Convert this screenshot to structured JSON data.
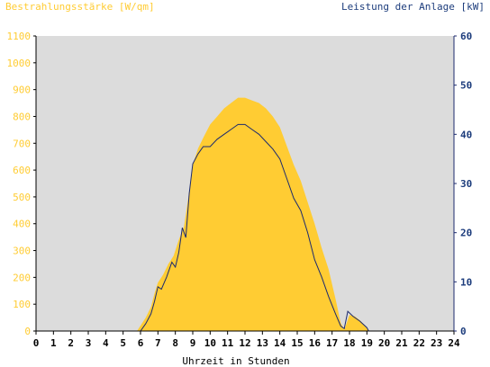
{
  "chart_data": {
    "type": "area",
    "left_axis_label": "Bestrahlungsstärke [W/qm]",
    "right_axis_label": "Leistung der Anlage [kW]",
    "xlabel": "Uhrzeit in Stunden",
    "xlim": [
      0,
      24
    ],
    "ylim_left": [
      0,
      1100
    ],
    "ylim_right": [
      0,
      60
    ],
    "x_ticks": [
      "0",
      "1",
      "2",
      "3",
      "4",
      "5",
      "6",
      "7",
      "8",
      "9",
      "10",
      "11",
      "12",
      "13",
      "14",
      "15",
      "16",
      "17",
      "18",
      "19",
      "20",
      "21",
      "22",
      "23",
      "24"
    ],
    "y_left_ticks": [
      "0",
      "100",
      "200",
      "300",
      "400",
      "500",
      "600",
      "700",
      "800",
      "900",
      "1000",
      "1100"
    ],
    "y_right_ticks": [
      "0",
      "10",
      "20",
      "30",
      "40",
      "50",
      "60"
    ],
    "grid": false,
    "colors": {
      "plot_background": "#dcdcdc",
      "irradiance_fill": "#ffcc33",
      "power_line": "#1c2a6e",
      "left_axis_text": "#ffcc33",
      "right_axis_text": "#1c3c7c",
      "axis": "#000000"
    },
    "series": [
      {
        "name": "Bestrahlungsstärke [W/qm]",
        "axis": "left",
        "style": "area",
        "x": [
          0,
          5.8,
          6.0,
          6.3,
          6.6,
          6.8,
          7.0,
          7.3,
          7.6,
          7.9,
          8.2,
          8.5,
          8.8,
          9.0,
          9.3,
          9.6,
          10.0,
          10.4,
          10.8,
          11.2,
          11.6,
          12.0,
          12.4,
          12.8,
          13.2,
          13.6,
          14.0,
          14.4,
          14.8,
          15.2,
          15.6,
          16.0,
          16.4,
          16.8,
          17.2,
          17.5,
          17.7,
          18.0,
          18.3,
          18.6,
          18.9,
          19.1,
          24
        ],
        "y": [
          0,
          0,
          20,
          50,
          90,
          140,
          180,
          210,
          250,
          280,
          340,
          390,
          520,
          620,
          680,
          720,
          770,
          800,
          830,
          850,
          870,
          870,
          860,
          850,
          830,
          800,
          760,
          690,
          620,
          560,
          480,
          400,
          310,
          230,
          120,
          30,
          5,
          60,
          55,
          40,
          20,
          0,
          0
        ]
      },
      {
        "name": "Leistung der Anlage [kW]",
        "axis": "right",
        "style": "line",
        "x": [
          0,
          6.0,
          6.3,
          6.6,
          6.8,
          7.0,
          7.2,
          7.5,
          7.8,
          8.0,
          8.2,
          8.4,
          8.6,
          8.8,
          9.0,
          9.3,
          9.6,
          10.0,
          10.4,
          10.8,
          11.2,
          11.6,
          12.0,
          12.4,
          12.8,
          13.2,
          13.6,
          14.0,
          14.4,
          14.8,
          15.2,
          15.6,
          16.0,
          16.4,
          16.8,
          17.2,
          17.5,
          17.7,
          17.9,
          18.2,
          18.6,
          19.0,
          19.1,
          24
        ],
        "y": [
          0,
          0,
          1.5,
          3.5,
          6,
          9,
          8.5,
          11,
          14,
          13,
          16,
          21,
          19,
          28,
          34,
          36,
          37.5,
          37.5,
          39,
          40,
          41,
          42,
          42,
          41,
          40,
          38.5,
          37,
          35,
          31,
          27,
          24.5,
          20,
          14.5,
          11,
          7,
          3.5,
          1,
          0.5,
          4,
          3,
          2,
          0.7,
          0,
          0
        ]
      }
    ]
  }
}
